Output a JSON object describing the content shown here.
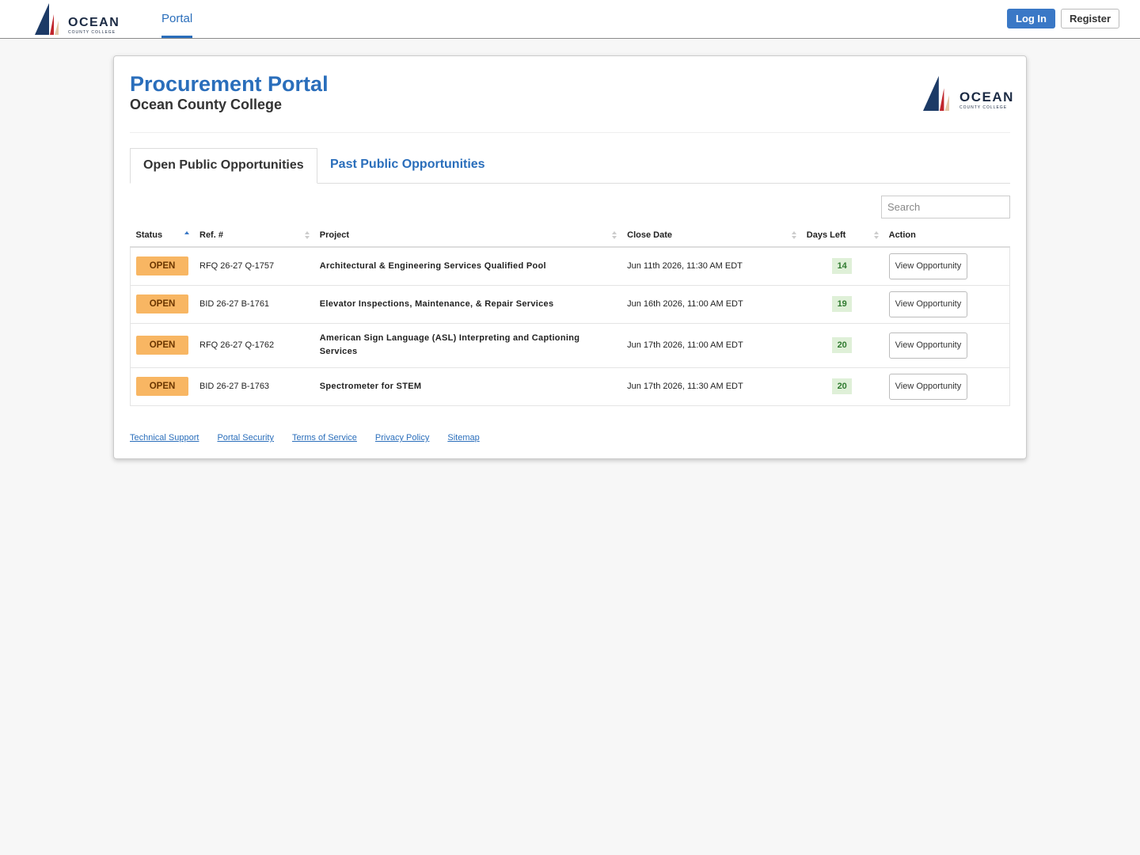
{
  "nav": {
    "logo": {
      "name": "OCEAN",
      "sub": "COUNTY COLLEGE"
    },
    "tab": "Portal",
    "login": "Log In",
    "register": "Register"
  },
  "header": {
    "title": "Procurement Portal",
    "subtitle": "Ocean County College"
  },
  "tabs": [
    "Open Public Opportunities",
    "Past Public Opportunities"
  ],
  "search": "Search",
  "table": {
    "columns": [
      "Status",
      "Ref. #",
      "Project",
      "Close Date",
      "Days Left",
      "Action"
    ],
    "rows": [
      [
        "OPEN",
        "RFQ 26-27 Q-1757",
        "Architectural & Engineering Services Qualified Pool",
        "Jun 11th 2026, 11:30 AM EDT",
        "14",
        "View Opportunity"
      ],
      [
        "OPEN",
        "BID 26-27 B-1761",
        "Elevator Inspections, Maintenance, & Repair Services",
        "Jun 16th 2026, 11:00 AM EDT",
        "19",
        "View Opportunity"
      ],
      [
        "OPEN",
        "RFQ 26-27 Q-1762",
        "American Sign Language (ASL) Interpreting and Captioning Services",
        "Jun 17th 2026, 11:00 AM EDT",
        "20",
        "View Opportunity"
      ],
      [
        "OPEN",
        "BID 26-27 B-1763",
        "Spectrometer for STEM",
        "Jun 17th 2026, 11:30 AM EDT",
        "20",
        "View Opportunity"
      ]
    ]
  },
  "footer": [
    "Technical Support",
    "Portal Security",
    "Terms of Service",
    "Privacy Policy",
    "Sitemap"
  ]
}
